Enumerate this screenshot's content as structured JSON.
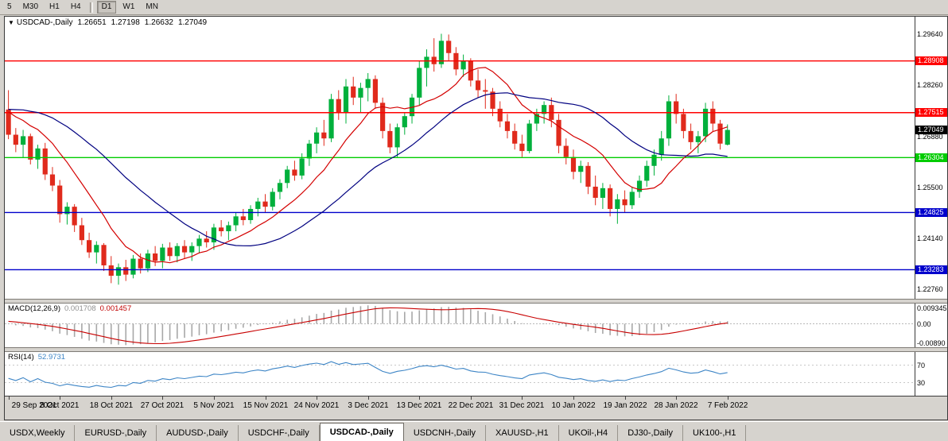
{
  "toolbar": {
    "timeframes": [
      {
        "label": "5"
      },
      {
        "label": "M30"
      },
      {
        "label": "H1"
      },
      {
        "label": "H4"
      },
      {
        "separator": true
      },
      {
        "label": "D1",
        "active": true
      },
      {
        "label": "W1"
      },
      {
        "label": "MN"
      }
    ]
  },
  "chart_header": {
    "collapse_arrow": "▼",
    "symbol": "USDCAD-,Daily",
    "open": "1.26651",
    "high": "1.27198",
    "low": "1.26632",
    "close": "1.27049"
  },
  "indicators": {
    "macd": {
      "label": "MACD(12,26,9)",
      "main_value": "0.001708",
      "signal_value": "0.001457",
      "axis": {
        "top": "0.009345",
        "mid": "0.00",
        "bottom": "-0.00890"
      }
    },
    "rsi": {
      "label": "RSI(14)",
      "value": "52.9731",
      "level_labels": [
        "70",
        "30"
      ]
    }
  },
  "price_scale": {
    "ticks": [
      {
        "label": "1.29640",
        "price": 1.2964
      },
      {
        "label": "1.28260",
        "price": 1.2826
      },
      {
        "label": "1.26880",
        "price": 1.2688
      },
      {
        "label": "1.25500",
        "price": 1.255
      },
      {
        "label": "1.24140",
        "price": 1.2414
      },
      {
        "label": "1.22760",
        "price": 1.2276
      }
    ]
  },
  "tabs": [
    {
      "label": "USDX,Weekly"
    },
    {
      "label": "EURUSD-,Daily"
    },
    {
      "label": "AUDUSD-,Daily"
    },
    {
      "label": "USDCHF-,Daily"
    },
    {
      "label": "USDCAD-,Daily",
      "active": true
    },
    {
      "label": "USDCNH-,Daily"
    },
    {
      "label": "XAUUSD-,H1"
    },
    {
      "label": "UKOil-,H4"
    },
    {
      "label": "DJ30-,Daily"
    },
    {
      "label": "UK100-,H1"
    }
  ],
  "colors": {
    "up": "#00b03c",
    "down": "#e02a1c",
    "ma_fast": "#d40000",
    "ma_slow": "#000080",
    "macd_hist": "#a8a8a8",
    "macd_signal": "#c80000",
    "rsi_line": "#3d85c6",
    "level_red": "#ff0000",
    "level_green": "#00cc00",
    "level_blue": "#0000cc",
    "current_tag": "#000000"
  },
  "chart_data": {
    "type": "candlestick",
    "symbol": "USDCAD",
    "timeframe": "Daily",
    "title": "USDCAD-,Daily",
    "grid": false,
    "price_range": [
      1.225,
      1.301
    ],
    "right_margin_bars": 25,
    "label_every": 7,
    "x_labels": [
      "29 Sep 2021",
      "8 Oct 2021",
      "18 Oct 2021",
      "27 Oct 2021",
      "5 Nov 2021",
      "15 Nov 2021",
      "24 Nov 2021",
      "3 Dec 2021",
      "13 Dec 2021",
      "22 Dec 2021",
      "31 Dec 2021",
      "10 Jan 2022",
      "19 Jan 2022",
      "28 Jan 2022",
      "7 Feb 2022"
    ],
    "horizontal_levels": [
      {
        "price": 1.28908,
        "label": "1.28908",
        "color": "#ff0000",
        "type": "resistance"
      },
      {
        "price": 1.27515,
        "label": "1.27515",
        "color": "#ff0000",
        "type": "resistance"
      },
      {
        "price": 1.27049,
        "label": "1.27049",
        "color": "#000000",
        "type": "current"
      },
      {
        "price": 1.26304,
        "label": "1.26304",
        "color": "#00cc00",
        "type": "support"
      },
      {
        "price": 1.24825,
        "label": "1.24825",
        "color": "#0000cc",
        "type": "support"
      },
      {
        "price": 1.23283,
        "label": "1.23283",
        "color": "#0000cc",
        "type": "support"
      }
    ],
    "moving_averages": [
      {
        "name": "ma-fast",
        "period": 10,
        "color": "#d40000"
      },
      {
        "name": "ma-slow",
        "period": 25,
        "color": "#000080"
      }
    ],
    "macd": {
      "params": [
        12,
        26,
        9
      ],
      "current": 0.001708,
      "signal": 0.001457
    },
    "rsi": {
      "period": 14,
      "current": 52.9731,
      "levels": [
        70,
        30
      ],
      "range": [
        0,
        100
      ]
    },
    "ma_warmup_closes": [
      1.27,
      1.269,
      1.2705,
      1.272,
      1.2735,
      1.2745,
      1.276,
      1.2775,
      1.279,
      1.2805,
      1.2795,
      1.278,
      1.277,
      1.2788,
      1.2802,
      1.2815,
      1.28,
      1.2785,
      1.277,
      1.2755,
      1.2765,
      1.275,
      1.274,
      1.2745,
      1.2735
    ],
    "candles": [
      [
        1.276,
        1.2812,
        1.268,
        1.2692
      ],
      [
        1.2692,
        1.271,
        1.2645,
        1.2665
      ],
      [
        1.2665,
        1.2705,
        1.263,
        1.2688
      ],
      [
        1.2688,
        1.2695,
        1.2612,
        1.2625
      ],
      [
        1.2625,
        1.2665,
        1.26,
        1.2655
      ],
      [
        1.2655,
        1.267,
        1.257,
        1.2585
      ],
      [
        1.2585,
        1.2605,
        1.254,
        1.2555
      ],
      [
        1.2555,
        1.257,
        1.2455,
        1.2478
      ],
      [
        1.2478,
        1.251,
        1.245,
        1.2498
      ],
      [
        1.2498,
        1.2505,
        1.243,
        1.2448
      ],
      [
        1.2448,
        1.2468,
        1.2395,
        1.2408
      ],
      [
        1.2408,
        1.2428,
        1.236,
        1.2375
      ],
      [
        1.2375,
        1.2405,
        1.2345,
        1.2395
      ],
      [
        1.2395,
        1.24,
        1.2325,
        1.234
      ],
      [
        1.234,
        1.2365,
        1.2292,
        1.2312
      ],
      [
        1.2312,
        1.2345,
        1.2288,
        1.2335
      ],
      [
        1.2335,
        1.2355,
        1.2298,
        1.2315
      ],
      [
        1.2315,
        1.2368,
        1.2305,
        1.2358
      ],
      [
        1.2358,
        1.2372,
        1.2318,
        1.2332
      ],
      [
        1.2332,
        1.2382,
        1.2322,
        1.2372
      ],
      [
        1.2372,
        1.2392,
        1.2338,
        1.2352
      ],
      [
        1.2352,
        1.2398,
        1.2332,
        1.2388
      ],
      [
        1.2388,
        1.2402,
        1.2352,
        1.2365
      ],
      [
        1.2365,
        1.24,
        1.2348,
        1.2392
      ],
      [
        1.2392,
        1.2408,
        1.2358,
        1.2375
      ],
      [
        1.2375,
        1.2402,
        1.2352,
        1.2392
      ],
      [
        1.2392,
        1.2422,
        1.2372,
        1.2412
      ],
      [
        1.2412,
        1.2432,
        1.2388,
        1.2402
      ],
      [
        1.2402,
        1.2452,
        1.2382,
        1.2442
      ],
      [
        1.2442,
        1.2462,
        1.2418,
        1.2432
      ],
      [
        1.2432,
        1.2458,
        1.2408,
        1.2448
      ],
      [
        1.2448,
        1.2482,
        1.2432,
        1.2472
      ],
      [
        1.2472,
        1.2492,
        1.2448,
        1.2462
      ],
      [
        1.2462,
        1.2502,
        1.2452,
        1.2492
      ],
      [
        1.2492,
        1.2522,
        1.2472,
        1.2512
      ],
      [
        1.2512,
        1.2532,
        1.2482,
        1.2498
      ],
      [
        1.2498,
        1.2548,
        1.2488,
        1.2538
      ],
      [
        1.2538,
        1.2572,
        1.2518,
        1.2562
      ],
      [
        1.2562,
        1.2608,
        1.2548,
        1.2598
      ],
      [
        1.2598,
        1.2622,
        1.2568,
        1.2582
      ],
      [
        1.2582,
        1.2642,
        1.2572,
        1.2628
      ],
      [
        1.2628,
        1.2678,
        1.2608,
        1.2668
      ],
      [
        1.2668,
        1.2712,
        1.2642,
        1.2698
      ],
      [
        1.2698,
        1.2732,
        1.2662,
        1.2682
      ],
      [
        1.2682,
        1.2802,
        1.2672,
        1.2788
      ],
      [
        1.2788,
        1.2812,
        1.2732,
        1.2752
      ],
      [
        1.2752,
        1.2842,
        1.2722,
        1.2822
      ],
      [
        1.2822,
        1.2848,
        1.2772,
        1.2792
      ],
      [
        1.2792,
        1.2832,
        1.2752,
        1.2818
      ],
      [
        1.2818,
        1.2858,
        1.2782,
        1.2842
      ],
      [
        1.2842,
        1.2852,
        1.2762,
        1.2778
      ],
      [
        1.2778,
        1.2792,
        1.2682,
        1.2702
      ],
      [
        1.2702,
        1.2722,
        1.2642,
        1.2658
      ],
      [
        1.2658,
        1.2722,
        1.2632,
        1.2712
      ],
      [
        1.2712,
        1.2752,
        1.2692,
        1.2742
      ],
      [
        1.2742,
        1.2802,
        1.2722,
        1.2792
      ],
      [
        1.2792,
        1.2892,
        1.2772,
        1.2872
      ],
      [
        1.2872,
        1.2922,
        1.2822,
        1.2902
      ],
      [
        1.2902,
        1.2952,
        1.2862,
        1.2882
      ],
      [
        1.2882,
        1.2964,
        1.2872,
        1.2945
      ],
      [
        1.2945,
        1.2962,
        1.2892,
        1.2912
      ],
      [
        1.2912,
        1.2928,
        1.2852,
        1.2868
      ],
      [
        1.2868,
        1.2908,
        1.2848,
        1.2892
      ],
      [
        1.2892,
        1.2898,
        1.2822,
        1.2838
      ],
      [
        1.2838,
        1.2868,
        1.2792,
        1.2812
      ],
      [
        1.2812,
        1.2842,
        1.2762,
        1.2808
      ],
      [
        1.2808,
        1.2818,
        1.2742,
        1.2762
      ],
      [
        1.2762,
        1.2782,
        1.2712,
        1.2728
      ],
      [
        1.2728,
        1.2748,
        1.2682,
        1.2702
      ],
      [
        1.2702,
        1.2722,
        1.2652,
        1.2668
      ],
      [
        1.2668,
        1.2692,
        1.2632,
        1.2648
      ],
      [
        1.2648,
        1.2732,
        1.2642,
        1.2722
      ],
      [
        1.2722,
        1.2762,
        1.2702,
        1.2748
      ],
      [
        1.2748,
        1.2782,
        1.2722,
        1.2772
      ],
      [
        1.2772,
        1.2792,
        1.2712,
        1.2732
      ],
      [
        1.2732,
        1.2748,
        1.2642,
        1.2662
      ],
      [
        1.2662,
        1.2682,
        1.2612,
        1.2632
      ],
      [
        1.2632,
        1.2652,
        1.2572,
        1.2592
      ],
      [
        1.2592,
        1.2622,
        1.2562,
        1.2608
      ],
      [
        1.2608,
        1.2618,
        1.2532,
        1.2552
      ],
      [
        1.2552,
        1.2582,
        1.2502,
        1.2522
      ],
      [
        1.2522,
        1.2562,
        1.2492,
        1.2548
      ],
      [
        1.2548,
        1.2558,
        1.2472,
        1.2492
      ],
      [
        1.2492,
        1.2532,
        1.2452,
        1.2518
      ],
      [
        1.2518,
        1.2542,
        1.2482,
        1.2502
      ],
      [
        1.2502,
        1.2552,
        1.2492,
        1.2538
      ],
      [
        1.2538,
        1.2582,
        1.2522,
        1.2568
      ],
      [
        1.2568,
        1.2622,
        1.2552,
        1.2608
      ],
      [
        1.2608,
        1.2652,
        1.2582,
        1.2638
      ],
      [
        1.2638,
        1.2702,
        1.2622,
        1.2682
      ],
      [
        1.2682,
        1.2798,
        1.2662,
        1.2782
      ],
      [
        1.2782,
        1.2802,
        1.2722,
        1.2748
      ],
      [
        1.2748,
        1.2762,
        1.2682,
        1.2702
      ],
      [
        1.2702,
        1.2722,
        1.2652,
        1.2672
      ],
      [
        1.2672,
        1.2702,
        1.2642,
        1.2688
      ],
      [
        1.2688,
        1.2778,
        1.2672,
        1.2762
      ],
      [
        1.2762,
        1.2782,
        1.2702,
        1.2722
      ],
      [
        1.2722,
        1.2732,
        1.2652,
        1.2668
      ],
      [
        1.26651,
        1.27198,
        1.26632,
        1.27049
      ]
    ]
  }
}
